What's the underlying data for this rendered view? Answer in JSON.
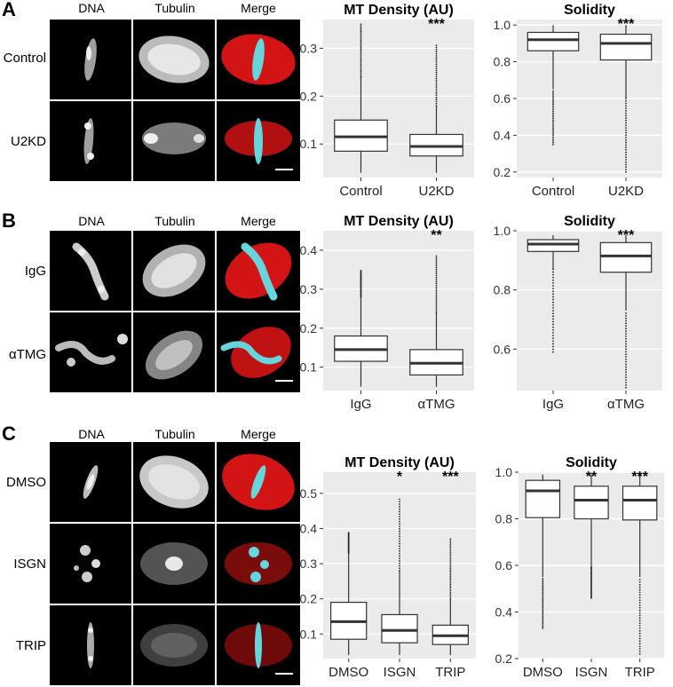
{
  "panels": [
    {
      "letter": "A",
      "columns": [
        "DNA",
        "Tubulin",
        "Merge"
      ],
      "rows": [
        "Control",
        "U2KD"
      ],
      "charts": [
        {
          "type": "box",
          "title": "MT Density (AU)",
          "categories": [
            "Control",
            "U2KD"
          ],
          "significance": [
            "",
            "***"
          ],
          "ylim": [
            0.03,
            0.36
          ],
          "yticks": [
            0.1,
            0.2,
            0.3
          ],
          "ytick_labels": [
            "0.1",
            "0.2",
            "0.3"
          ],
          "boxes": [
            {
              "whisker_low": 0.04,
              "q1": 0.085,
              "median": 0.115,
              "q3": 0.15,
              "whisker_high": 0.24,
              "max": 0.35
            },
            {
              "whisker_low": 0.04,
              "q1": 0.075,
              "median": 0.095,
              "q3": 0.12,
              "whisker_high": 0.18,
              "max": 0.31
            }
          ]
        },
        {
          "type": "box",
          "title": "Solidity",
          "categories": [
            "Control",
            "U2KD"
          ],
          "significance": [
            "",
            "***"
          ],
          "ylim": [
            0.17,
            1.03
          ],
          "yticks": [
            0.2,
            0.4,
            0.6,
            0.8,
            1.0
          ],
          "ytick_labels": [
            "0.2",
            "0.4",
            "0.6",
            "0.8",
            "1.0"
          ],
          "boxes": [
            {
              "whisker_low": 0.65,
              "q1": 0.86,
              "median": 0.92,
              "q3": 0.96,
              "whisker_high": 1.0,
              "min": 0.35
            },
            {
              "whisker_low": 0.6,
              "q1": 0.81,
              "median": 0.9,
              "q3": 0.95,
              "whisker_high": 1.0,
              "min": 0.2
            }
          ]
        }
      ]
    },
    {
      "letter": "B",
      "columns": [
        "DNA",
        "Tubulin",
        "Merge"
      ],
      "rows": [
        "IgG",
        "αTMG"
      ],
      "charts": [
        {
          "type": "box",
          "title": "MT Density (AU)",
          "categories": [
            "IgG",
            "αTMG"
          ],
          "significance": [
            "",
            "**"
          ],
          "ylim": [
            0.04,
            0.45
          ],
          "yticks": [
            0.1,
            0.2,
            0.3,
            0.4
          ],
          "ytick_labels": [
            "0.1",
            "0.2",
            "0.3",
            "0.4"
          ],
          "boxes": [
            {
              "whisker_low": 0.05,
              "q1": 0.115,
              "median": 0.145,
              "q3": 0.18,
              "whisker_high": 0.28,
              "max": 0.35
            },
            {
              "whisker_low": 0.05,
              "q1": 0.08,
              "median": 0.11,
              "q3": 0.145,
              "whisker_high": 0.24,
              "max": 0.39
            }
          ]
        },
        {
          "type": "box",
          "title": "Solidity",
          "categories": [
            "IgG",
            "αTMG"
          ],
          "significance": [
            "",
            "***"
          ],
          "ylim": [
            0.46,
            1.0
          ],
          "yticks": [
            0.6,
            0.8,
            1.0
          ],
          "ytick_labels": [
            "0.6",
            "0.8",
            "1.0"
          ],
          "boxes": [
            {
              "whisker_low": 0.87,
              "q1": 0.93,
              "median": 0.955,
              "q3": 0.97,
              "whisker_high": 0.985,
              "min": 0.59
            },
            {
              "whisker_low": 0.73,
              "q1": 0.86,
              "median": 0.915,
              "q3": 0.96,
              "whisker_high": 0.985,
              "min": 0.47
            }
          ]
        }
      ]
    },
    {
      "letter": "C",
      "columns": [
        "DNA",
        "Tubulin",
        "Merge"
      ],
      "rows": [
        "DMSO",
        "ISGN",
        "TRIP"
      ],
      "charts": [
        {
          "type": "box",
          "title": "MT Density (AU)",
          "categories": [
            "DMSO",
            "ISGN",
            "TRIP"
          ],
          "significance": [
            "",
            "*",
            "***"
          ],
          "ylim": [
            0.03,
            0.56
          ],
          "yticks": [
            0.1,
            0.2,
            0.3,
            0.4,
            0.5
          ],
          "ytick_labels": [
            "0.1",
            "0.2",
            "0.3",
            "0.4",
            "0.5"
          ],
          "boxes": [
            {
              "whisker_low": 0.04,
              "q1": 0.085,
              "median": 0.135,
              "q3": 0.19,
              "whisker_high": 0.33,
              "max": 0.39
            },
            {
              "whisker_low": 0.04,
              "q1": 0.075,
              "median": 0.11,
              "q3": 0.155,
              "whisker_high": 0.28,
              "max": 0.49
            },
            {
              "whisker_low": 0.04,
              "q1": 0.07,
              "median": 0.095,
              "q3": 0.125,
              "whisker_high": 0.2,
              "max": 0.37
            }
          ]
        },
        {
          "type": "box",
          "title": "Solidity",
          "categories": [
            "DMSO",
            "ISGN",
            "TRIP"
          ],
          "significance": [
            "",
            "**",
            "***"
          ],
          "ylim": [
            0.2,
            1.0
          ],
          "yticks": [
            0.2,
            0.4,
            0.6,
            0.8,
            1.0
          ],
          "ytick_labels": [
            "0.2",
            "0.4",
            "0.6",
            "0.8",
            "1.0"
          ],
          "boxes": [
            {
              "whisker_low": 0.55,
              "q1": 0.805,
              "median": 0.92,
              "q3": 0.965,
              "whisker_high": 0.99,
              "min": 0.33
            },
            {
              "whisker_low": 0.6,
              "q1": 0.8,
              "median": 0.88,
              "q3": 0.94,
              "whisker_high": 0.99,
              "min": 0.46
            },
            {
              "whisker_low": 0.55,
              "q1": 0.795,
              "median": 0.88,
              "q3": 0.94,
              "whisker_high": 0.99,
              "min": 0.22
            }
          ]
        }
      ]
    }
  ],
  "colors": {
    "plot_background": "#ebebeb",
    "gridline": "#ffffff",
    "box_fill": "#ffffff",
    "box_stroke": "#333333",
    "tubulin_red": "#d21414",
    "dna_cyan": "#66d6dd"
  }
}
